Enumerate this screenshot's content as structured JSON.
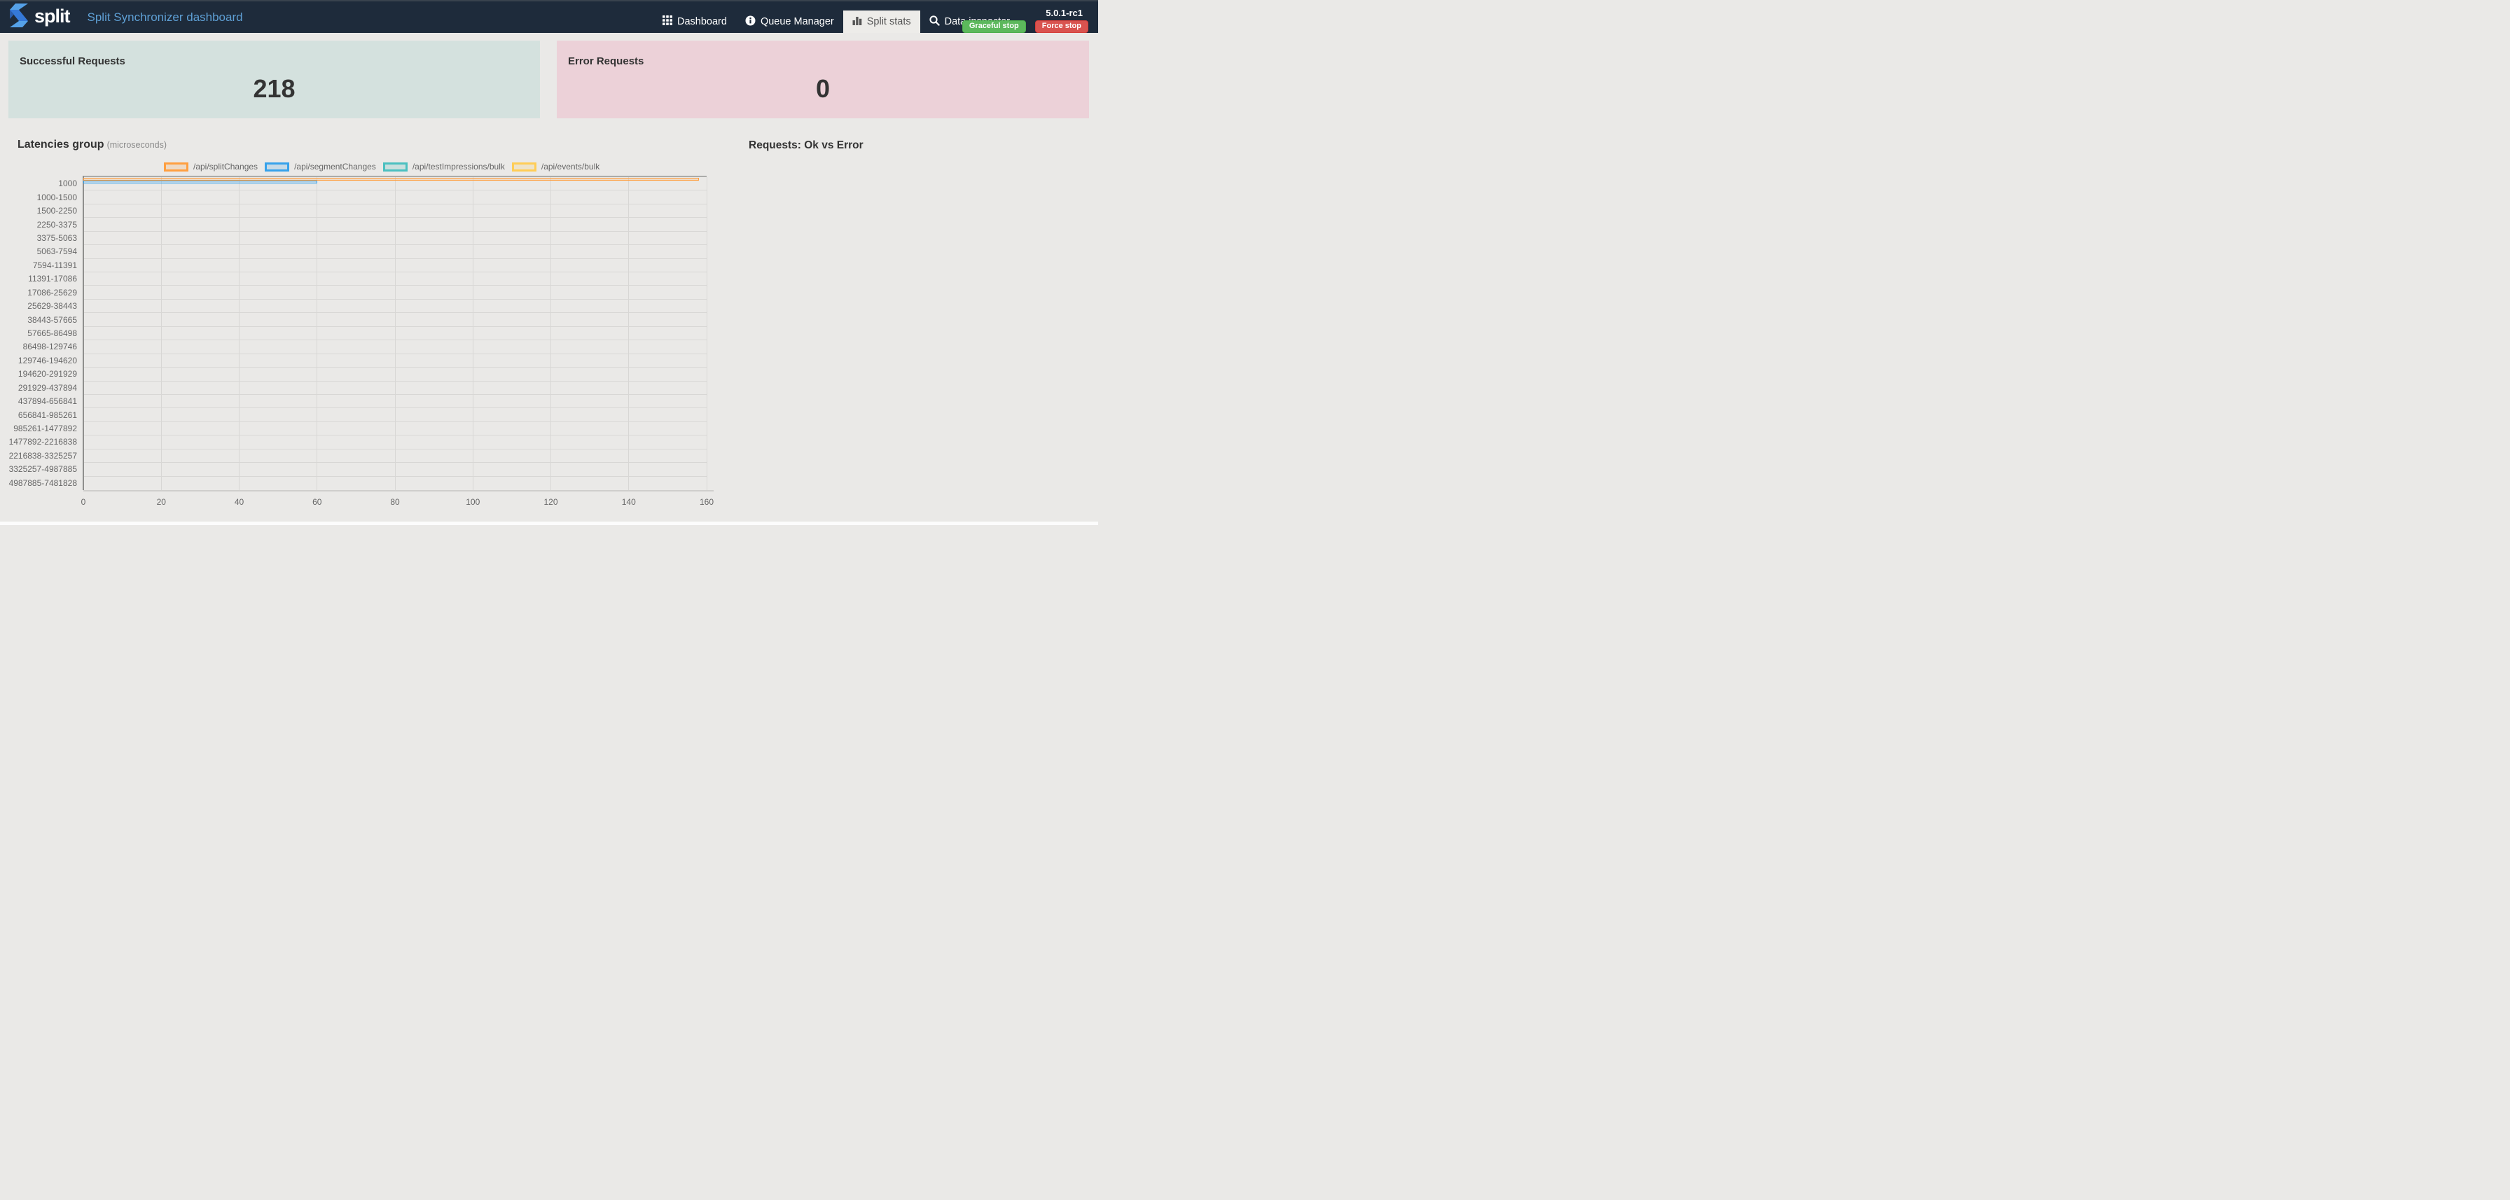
{
  "navbar": {
    "brand": "split",
    "subtitle": "Split Synchronizer dashboard",
    "version": "5.0.1-rc1",
    "items": [
      {
        "label": "Dashboard",
        "icon": "grid-icon",
        "active": false
      },
      {
        "label": "Queue Manager",
        "icon": "info-circle-icon",
        "active": false
      },
      {
        "label": "Split stats",
        "icon": "bar-chart-icon",
        "active": true
      },
      {
        "label": "Data inspector",
        "icon": "search-icon",
        "active": false
      }
    ],
    "buttons": [
      {
        "label": "Graceful stop",
        "color": "#5cb85c"
      },
      {
        "label": "Force stop",
        "color": "#d9534f"
      }
    ],
    "colors": {
      "navbar_bg": "#1e2b3b",
      "subtitle": "#5e9fd4",
      "active_tab_bg": "#edece9"
    }
  },
  "cards": {
    "success": {
      "title": "Successful Requests",
      "value": "218",
      "bg": "#d4e1de"
    },
    "error": {
      "title": "Error Requests",
      "value": "0",
      "bg": "#ecd1d8"
    }
  },
  "sections": {
    "latencies_title": "Latencies group",
    "latencies_unit": "(microseconds)",
    "requests_title": "Requests: Ok vs Error"
  },
  "chart_data": {
    "type": "bar",
    "orientation": "horizontal",
    "title": "Latencies group (microseconds)",
    "categories": [
      "1000",
      "1000-1500",
      "1500-2250",
      "2250-3375",
      "3375-5063",
      "5063-7594",
      "7594-11391",
      "11391-17086",
      "17086-25629",
      "25629-38443",
      "38443-57665",
      "57665-86498",
      "86498-129746",
      "129746-194620",
      "194620-291929",
      "291929-437894",
      "437894-656841",
      "656841-985261",
      "985261-1477892",
      "1477892-2216838",
      "2216838-3325257",
      "3325257-4987885",
      "4987885-7481828"
    ],
    "series": [
      {
        "name": "/api/splitChanges",
        "color": "#ff9f40",
        "values": [
          158,
          0,
          0,
          0,
          0,
          0,
          0,
          0,
          0,
          0,
          0,
          0,
          0,
          0,
          0,
          0,
          0,
          0,
          0,
          0,
          0,
          0,
          0
        ]
      },
      {
        "name": "/api/segmentChanges",
        "color": "#36a2eb",
        "values": [
          60,
          0,
          0,
          0,
          0,
          0,
          0,
          0,
          0,
          0,
          0,
          0,
          0,
          0,
          0,
          0,
          0,
          0,
          0,
          0,
          0,
          0,
          0
        ]
      },
      {
        "name": "/api/testImpressions/bulk",
        "color": "#4bc0c0",
        "values": [
          0,
          0,
          0,
          0,
          0,
          0,
          0,
          0,
          0,
          0,
          0,
          0,
          0,
          0,
          0,
          0,
          0,
          0,
          0,
          0,
          0,
          0,
          0
        ]
      },
      {
        "name": "/api/events/bulk",
        "color": "#ffcd56",
        "values": [
          0,
          0,
          0,
          0,
          0,
          0,
          0,
          0,
          0,
          0,
          0,
          0,
          0,
          0,
          0,
          0,
          0,
          0,
          0,
          0,
          0,
          0,
          0
        ]
      }
    ],
    "xlabel": "",
    "ylabel": "",
    "xlim": [
      0,
      160
    ],
    "x_ticks": [
      0,
      20,
      40,
      60,
      80,
      100,
      120,
      140,
      160
    ],
    "grid": true,
    "legend_position": "top"
  }
}
